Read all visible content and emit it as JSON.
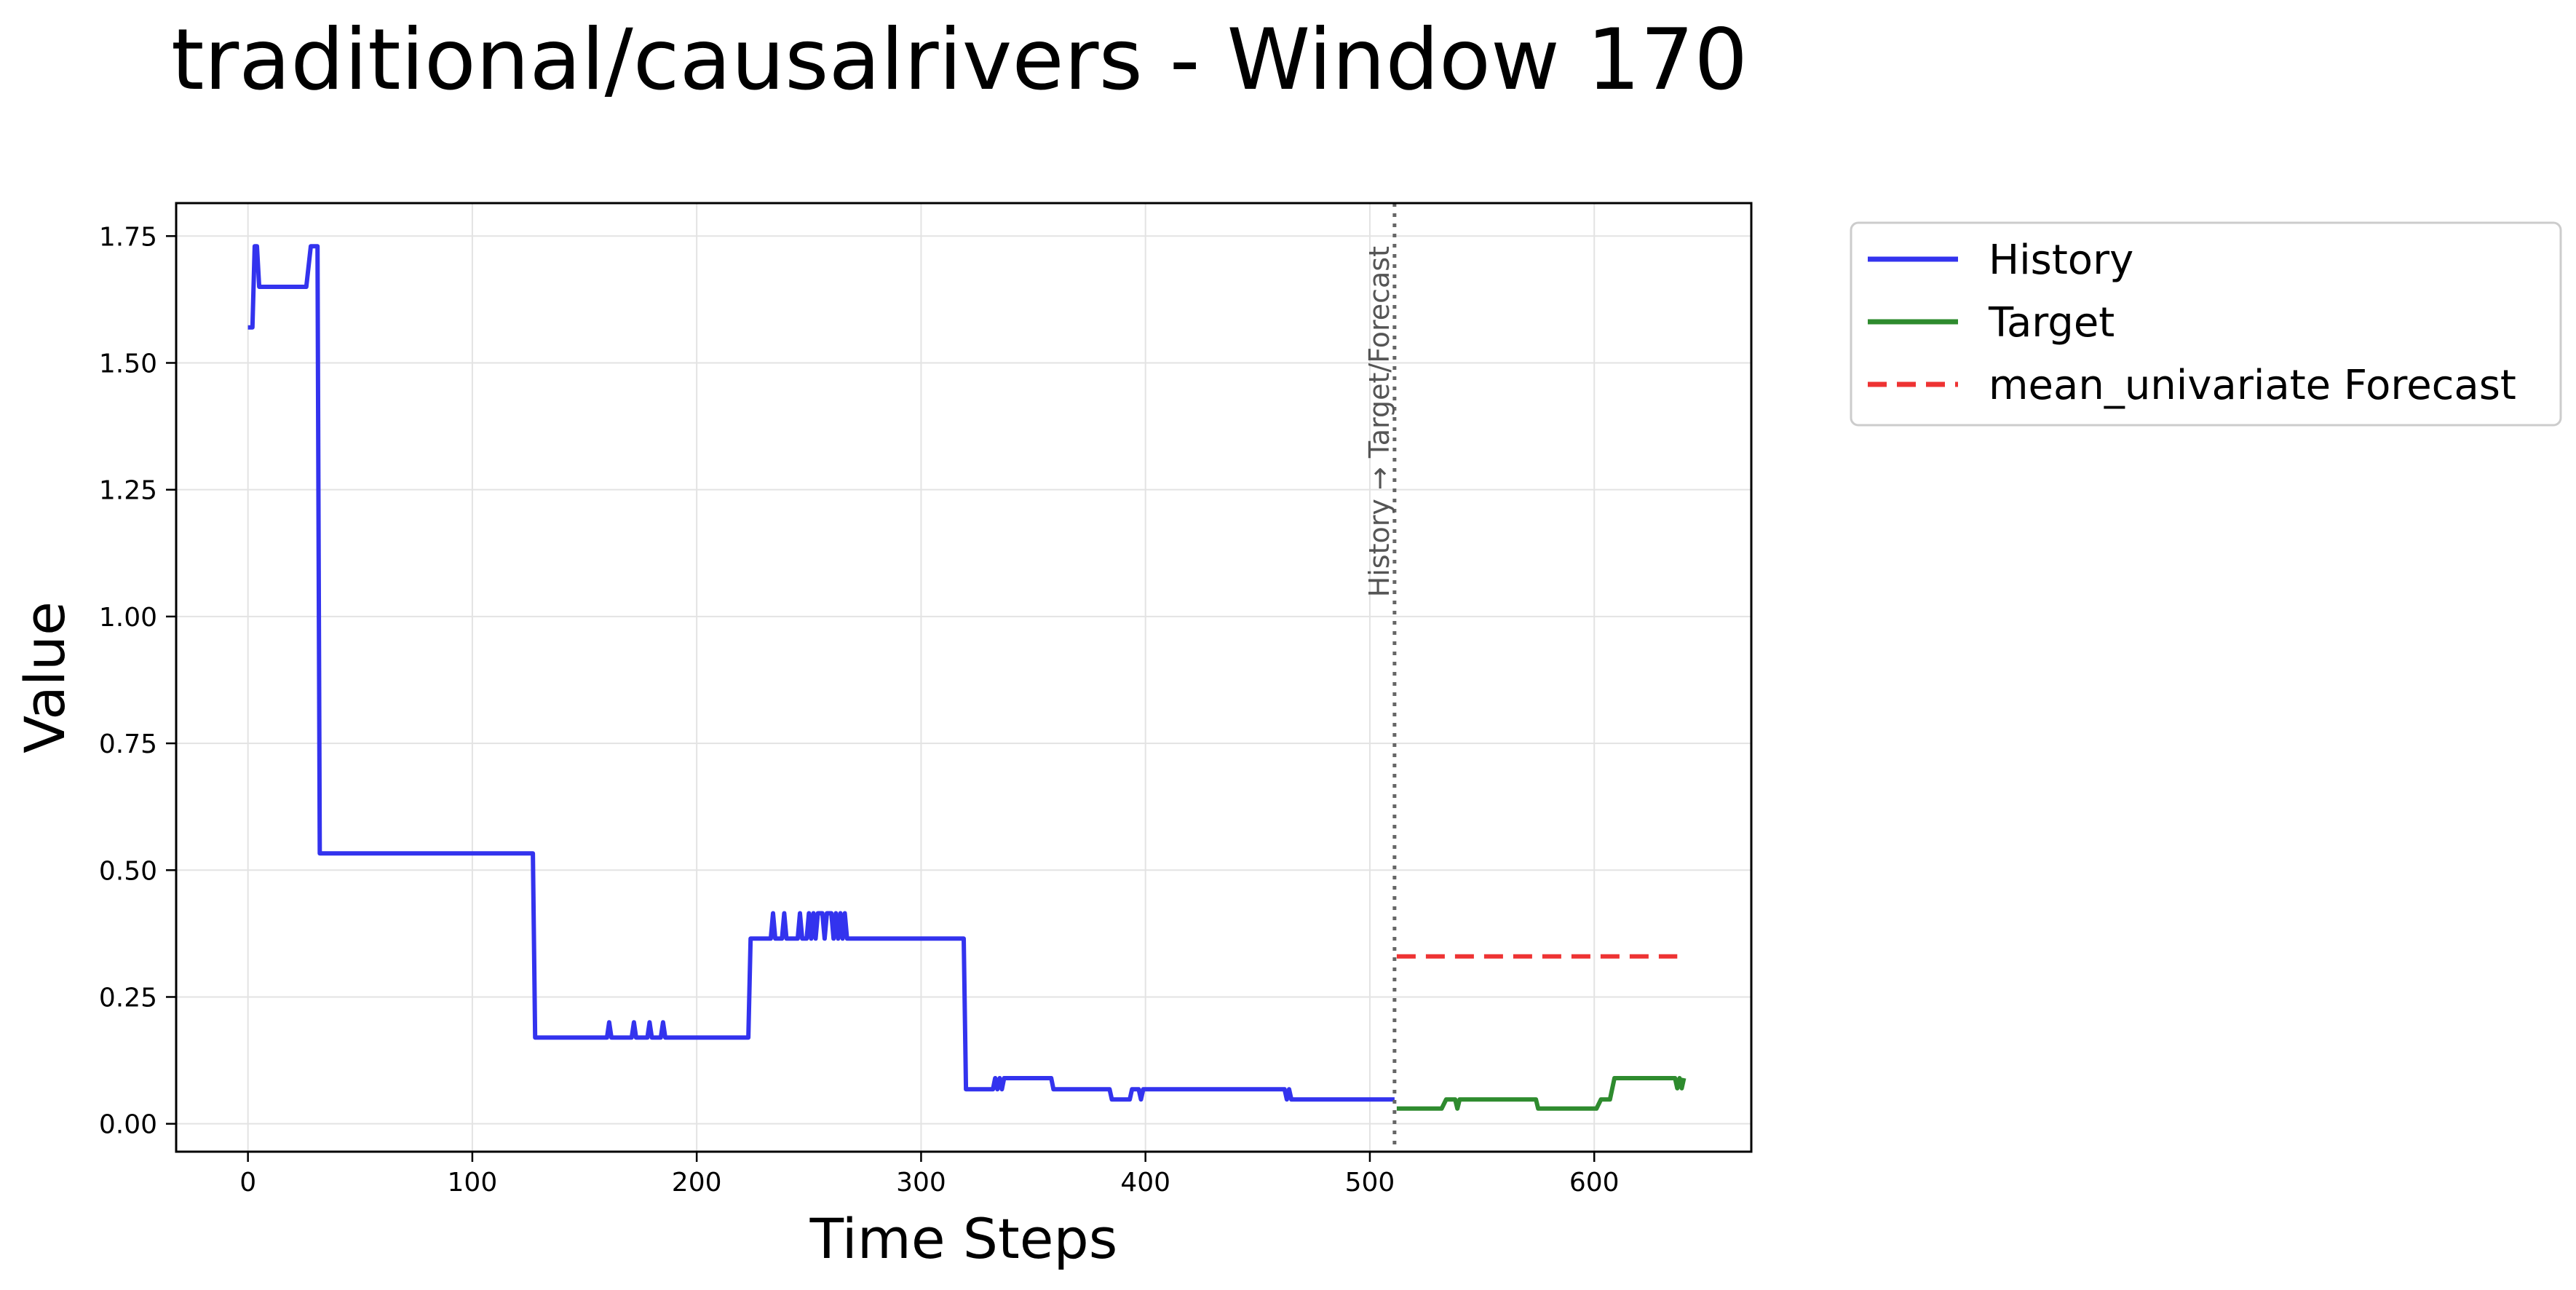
{
  "chart_data": {
    "type": "line",
    "title": "traditional/causalrivers - Window 170",
    "xlabel": "Time Steps",
    "ylabel": "Value",
    "xlim": [
      -32,
      670
    ],
    "ylim": [
      -0.055,
      1.815
    ],
    "xticks": [
      0,
      100,
      200,
      300,
      400,
      500,
      600
    ],
    "yticks": [
      0.0,
      0.25,
      0.5,
      0.75,
      1.0,
      1.25,
      1.5,
      1.75
    ],
    "ytick_labels": [
      "0.00",
      "0.25",
      "0.50",
      "0.75",
      "1.00",
      "1.25",
      "1.50",
      "1.75"
    ],
    "grid": true,
    "legend_position": "outside-top-right",
    "split_line": {
      "x": 511,
      "label": "History → Target/Forecast"
    },
    "series": [
      {
        "name": "History",
        "color": "#3333ee",
        "style": "solid",
        "points": [
          [
            0,
            1.57
          ],
          [
            2,
            1.57
          ],
          [
            3,
            1.73
          ],
          [
            4,
            1.73
          ],
          [
            5,
            1.65
          ],
          [
            26,
            1.65
          ],
          [
            28,
            1.73
          ],
          [
            31,
            1.73
          ],
          [
            32,
            0.533
          ],
          [
            127,
            0.533
          ],
          [
            128,
            0.17
          ],
          [
            160,
            0.17
          ],
          [
            161,
            0.2
          ],
          [
            162,
            0.17
          ],
          [
            171,
            0.17
          ],
          [
            172,
            0.2
          ],
          [
            173,
            0.17
          ],
          [
            178,
            0.17
          ],
          [
            179,
            0.2
          ],
          [
            180,
            0.17
          ],
          [
            184,
            0.17
          ],
          [
            185,
            0.2
          ],
          [
            186,
            0.17
          ],
          [
            223,
            0.17
          ],
          [
            224,
            0.365
          ],
          [
            233,
            0.365
          ],
          [
            234,
            0.415
          ],
          [
            235,
            0.365
          ],
          [
            238,
            0.365
          ],
          [
            239,
            0.415
          ],
          [
            240,
            0.365
          ],
          [
            245,
            0.365
          ],
          [
            246,
            0.415
          ],
          [
            247,
            0.365
          ],
          [
            249,
            0.365
          ],
          [
            250,
            0.415
          ],
          [
            251,
            0.365
          ],
          [
            252,
            0.415
          ],
          [
            253,
            0.365
          ],
          [
            254,
            0.415
          ],
          [
            256,
            0.415
          ],
          [
            257,
            0.365
          ],
          [
            258,
            0.415
          ],
          [
            260,
            0.415
          ],
          [
            261,
            0.365
          ],
          [
            262,
            0.415
          ],
          [
            263,
            0.365
          ],
          [
            264,
            0.415
          ],
          [
            265,
            0.365
          ],
          [
            266,
            0.415
          ],
          [
            267,
            0.365
          ],
          [
            319,
            0.365
          ],
          [
            320,
            0.068
          ],
          [
            332,
            0.068
          ],
          [
            333,
            0.09
          ],
          [
            334,
            0.068
          ],
          [
            335,
            0.09
          ],
          [
            336,
            0.068
          ],
          [
            337,
            0.09
          ],
          [
            358,
            0.09
          ],
          [
            359,
            0.068
          ],
          [
            384,
            0.068
          ],
          [
            385,
            0.048
          ],
          [
            393,
            0.048
          ],
          [
            394,
            0.068
          ],
          [
            397,
            0.068
          ],
          [
            398,
            0.048
          ],
          [
            399,
            0.068
          ],
          [
            462,
            0.068
          ],
          [
            463,
            0.048
          ],
          [
            464,
            0.068
          ],
          [
            465,
            0.048
          ],
          [
            511,
            0.048
          ]
        ]
      },
      {
        "name": "Target",
        "color": "#2e8b2e",
        "style": "solid",
        "points": [
          [
            512,
            0.03
          ],
          [
            532,
            0.03
          ],
          [
            534,
            0.048
          ],
          [
            538,
            0.048
          ],
          [
            539,
            0.03
          ],
          [
            540,
            0.048
          ],
          [
            574,
            0.048
          ],
          [
            575,
            0.03
          ],
          [
            601,
            0.03
          ],
          [
            603,
            0.048
          ],
          [
            607,
            0.048
          ],
          [
            609,
            0.09
          ],
          [
            636,
            0.09
          ],
          [
            637,
            0.07
          ],
          [
            638,
            0.09
          ],
          [
            639,
            0.07
          ],
          [
            640,
            0.09
          ]
        ]
      },
      {
        "name": "mean_univariate Forecast",
        "color": "#ee3333",
        "style": "dashed",
        "points": [
          [
            512,
            0.33
          ],
          [
            637,
            0.33
          ]
        ]
      }
    ]
  }
}
